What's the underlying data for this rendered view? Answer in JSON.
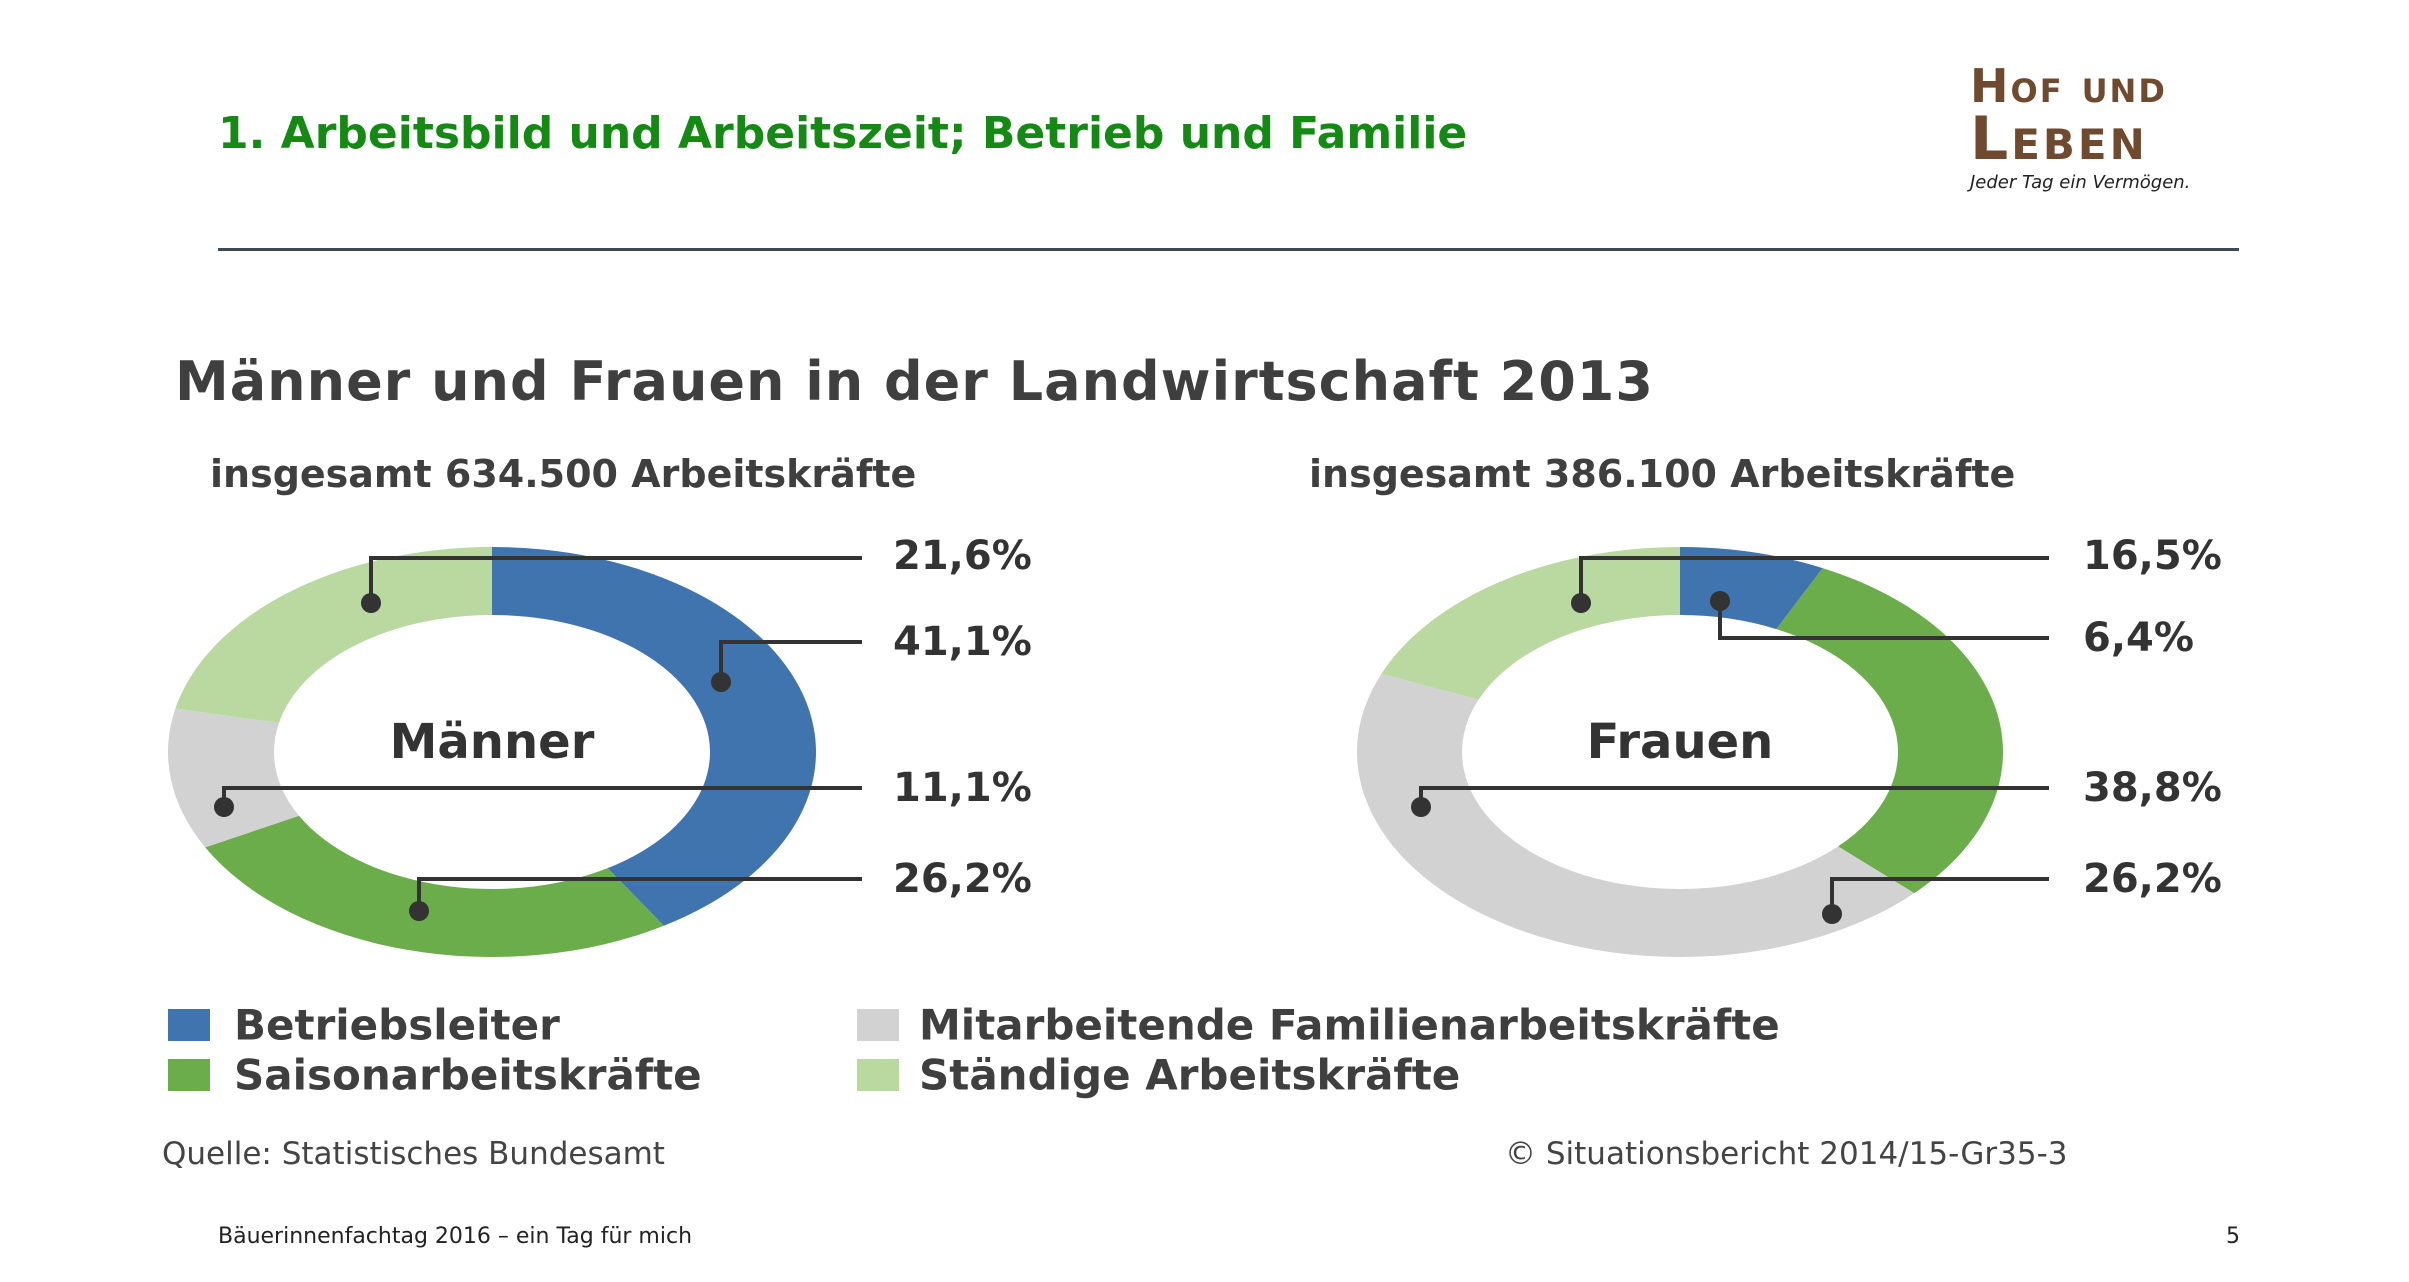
{
  "slide": {
    "title": "1. Arbeitsbild und Arbeitszeit; Betrieb und Familie",
    "logo": {
      "line1": "Hof und",
      "line2": "Leben",
      "tagline": "Jeder Tag ein Vermögen."
    },
    "footer": {
      "text": "Bäuerinnenfachtag 2016 – ein Tag für mich",
      "page": "5"
    }
  },
  "chart_data": {
    "type": "pie",
    "variant": "donut",
    "title": "Männer und Frauen in der Landwirtschaft 2013",
    "source": "Quelle: Statistisches Bundesamt",
    "copyright": "© Situationsbericht 2014/15-Gr35-3",
    "legend": [
      {
        "name": "Betriebsleiter",
        "color": "#3f74ae"
      },
      {
        "name": "Mitarbeitende Familienarbeitskräfte",
        "color": "#d2d2d2"
      },
      {
        "name": "Saisonarbeitskräfte",
        "color": "#6aad4a"
      },
      {
        "name": "Ständige Arbeitskräfte",
        "color": "#b9d9a0"
      }
    ],
    "charts": [
      {
        "label": "Männer",
        "subtitle": "insgesamt 634.500 Arbeitskräfte",
        "slices": [
          {
            "category": "Betriebsleiter",
            "value": 41.1,
            "label": "41,1%"
          },
          {
            "category": "Saisonarbeitskräfte",
            "value": 26.2,
            "label": "26,2%"
          },
          {
            "category": "Mitarbeitende Familienarbeitskräfte",
            "value": 11.1,
            "label": "11,1%"
          },
          {
            "category": "Ständige Arbeitskräfte",
            "value": 21.6,
            "label": "21,6%"
          }
        ],
        "label_order": [
          "21,6%",
          "41,1%",
          "11,1%",
          "26,2%"
        ]
      },
      {
        "label": "Frauen",
        "subtitle": "insgesamt 386.100 Arbeitskräfte",
        "slices": [
          {
            "category": "Betriebsleiter",
            "value": 6.4,
            "label": "6,4%"
          },
          {
            "category": "Saisonarbeitskräfte",
            "value": 26.2,
            "label": "26,2%"
          },
          {
            "category": "Mitarbeitende Familienarbeitskräfte",
            "value": 38.8,
            "label": "38,8%"
          },
          {
            "category": "Ständige Arbeitskräfte",
            "value": 16.5,
            "label": "16,5%"
          }
        ],
        "label_order": [
          "16,5%",
          "6,4%",
          "38,8%",
          "26,2%"
        ]
      }
    ]
  }
}
